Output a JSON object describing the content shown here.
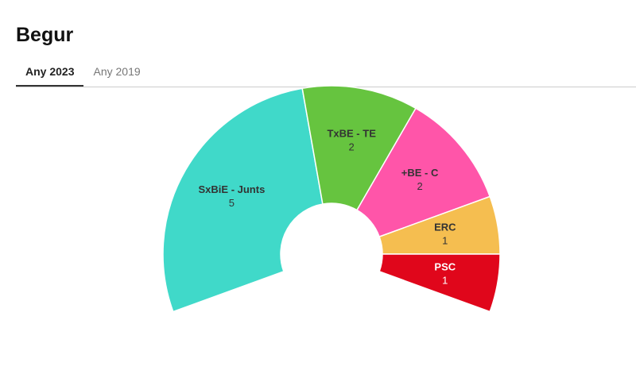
{
  "header": {
    "title": "Begur",
    "tabs": [
      "Any 2023",
      "Any 2019"
    ]
  },
  "chart_data": {
    "type": "pie",
    "categories": [
      "SxBiE - Junts",
      "TxBE - TE",
      "+BE - C",
      "ERC",
      "PSC"
    ],
    "values": [
      5,
      2,
      2,
      1,
      1
    ],
    "colors": [
      "#40d9c9",
      "#66c43f",
      "#ff55a9",
      "#f5be50",
      "#e0061b"
    ]
  }
}
